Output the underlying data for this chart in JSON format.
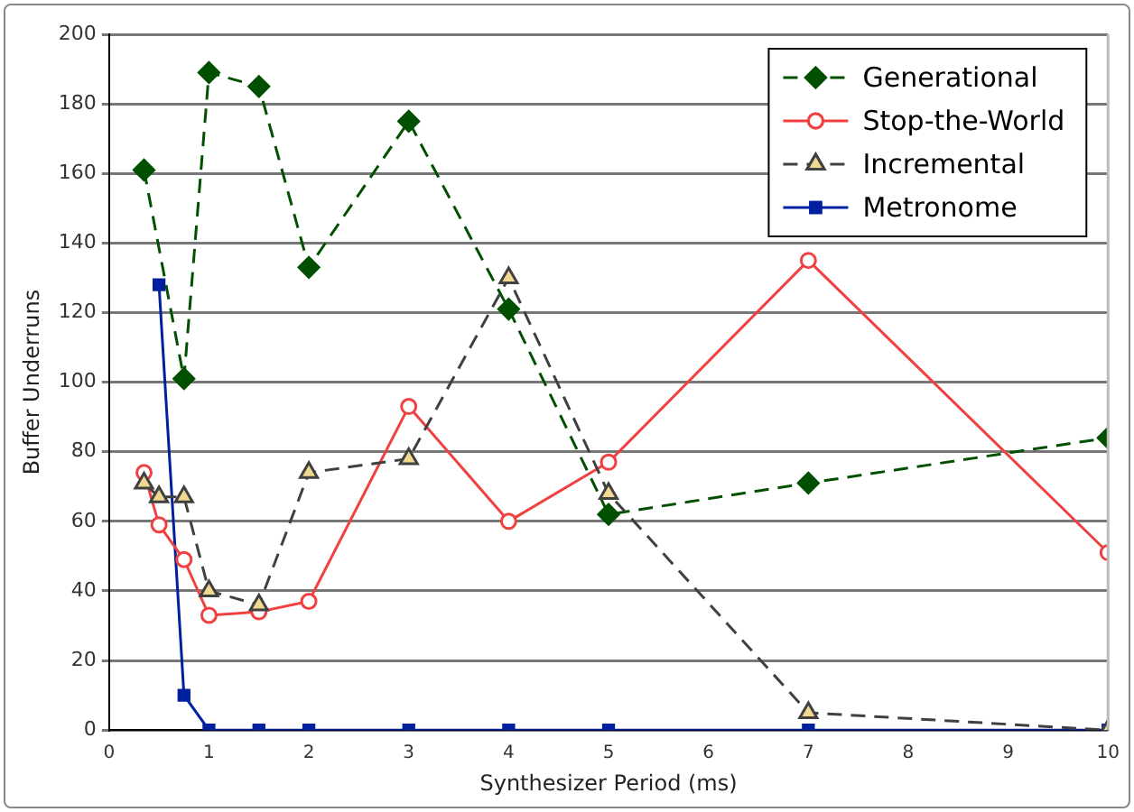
{
  "chart_data": {
    "type": "line",
    "xlabel": "Synthesizer Period (ms)",
    "ylabel": "Buffer Underruns",
    "x": [
      0.35,
      0.5,
      0.75,
      1,
      1.5,
      2,
      3,
      4,
      5,
      7,
      10
    ],
    "xlim": [
      0,
      10
    ],
    "xticks": [
      0,
      1,
      2,
      3,
      4,
      5,
      6,
      7,
      8,
      9,
      10
    ],
    "ylim": [
      0,
      200
    ],
    "yticks": [
      0,
      20,
      40,
      60,
      80,
      100,
      120,
      140,
      160,
      180,
      200
    ],
    "grid": "y",
    "legend": "top right",
    "series": [
      {
        "name": "Generational",
        "color": "#005000",
        "marker": "diamond",
        "line_style": "dashed",
        "values": [
          161,
          null,
          101,
          189,
          185,
          133,
          175,
          121,
          62,
          71,
          84
        ]
      },
      {
        "name": "Stop-the-World",
        "color": "#f04040",
        "marker": "circle",
        "line_style": "solid",
        "values": [
          74,
          59,
          49,
          33,
          34,
          37,
          93,
          60,
          77,
          135,
          51
        ]
      },
      {
        "name": "Incremental",
        "color": "#404040",
        "marker": "triangle",
        "line_style": "dashed",
        "values": [
          71,
          67,
          67,
          40,
          36,
          74,
          78,
          130,
          68,
          5,
          0
        ]
      },
      {
        "name": "Metronome",
        "color": "#0020a0",
        "marker": "square",
        "line_style": "solid",
        "values": [
          null,
          128,
          10,
          0,
          0,
          0,
          0,
          0,
          0,
          0,
          0
        ]
      }
    ]
  }
}
